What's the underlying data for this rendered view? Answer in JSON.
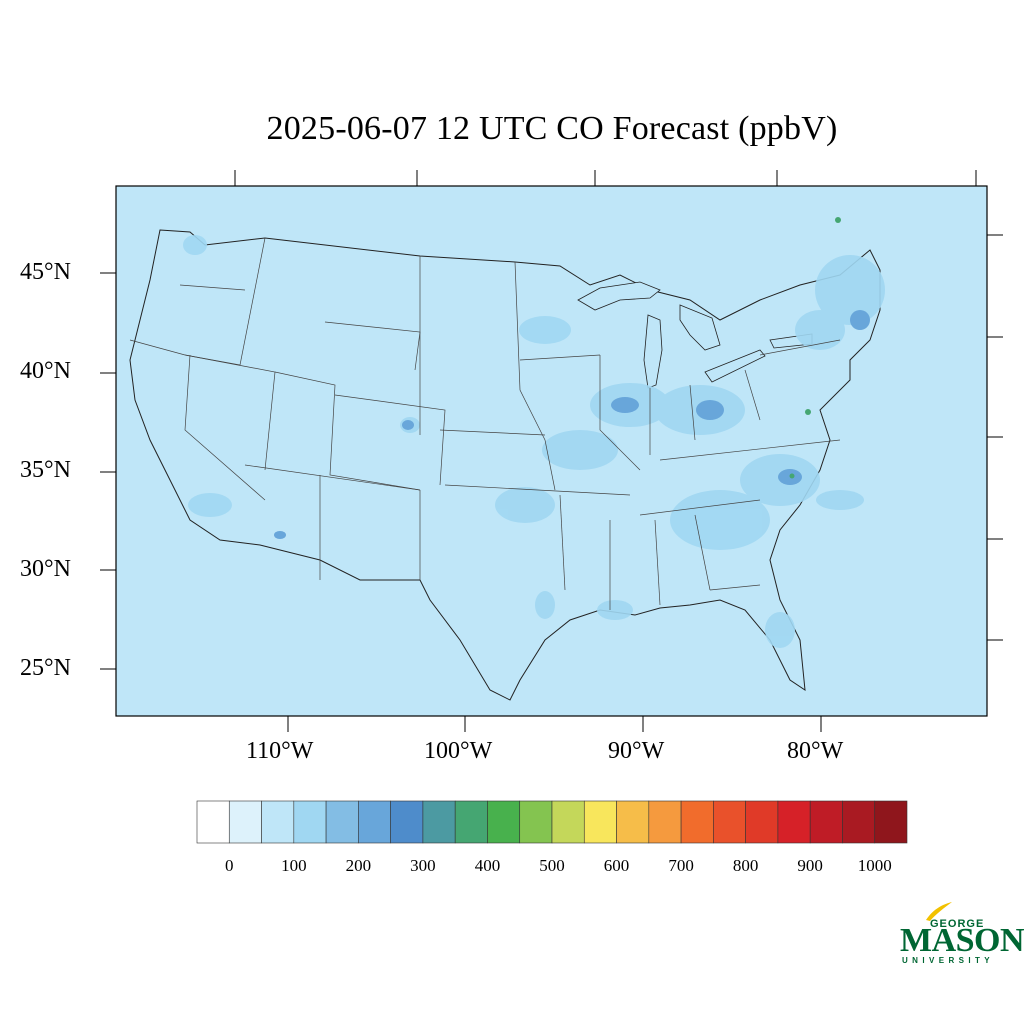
{
  "title": "2025-06-07 12 UTC CO Forecast (ppbV)",
  "map": {
    "region": "Continental United States",
    "variable": "CO",
    "units": "ppbV",
    "background_color": "#bfe6f8",
    "lat_labels": [
      "45°N",
      "40°N",
      "35°N",
      "30°N",
      "25°N"
    ],
    "lon_labels": [
      "110°W",
      "100°W",
      "90°W",
      "80°W"
    ]
  },
  "colorbar": {
    "colors": [
      "#ffffff",
      "#ddf2fb",
      "#bfe6f8",
      "#a0d7f2",
      "#83bde4",
      "#68a6da",
      "#4e8ccb",
      "#4c9aa2",
      "#45a672",
      "#48b14d",
      "#84c450",
      "#c4d75a",
      "#f8e65c",
      "#f6bd49",
      "#f59a3e",
      "#f16c2c",
      "#e9512b",
      "#e03a28",
      "#d62128",
      "#bf1c26",
      "#a91a22",
      "#8f161c"
    ],
    "tick_labels": [
      "0",
      "100",
      "200",
      "300",
      "400",
      "500",
      "600",
      "700",
      "800",
      "900",
      "1000"
    ]
  },
  "logo": {
    "line1": "GEORGE",
    "line2": "MASON",
    "line3": "UNIVERSITY",
    "color": "#006633",
    "accent": "#f2c100"
  }
}
